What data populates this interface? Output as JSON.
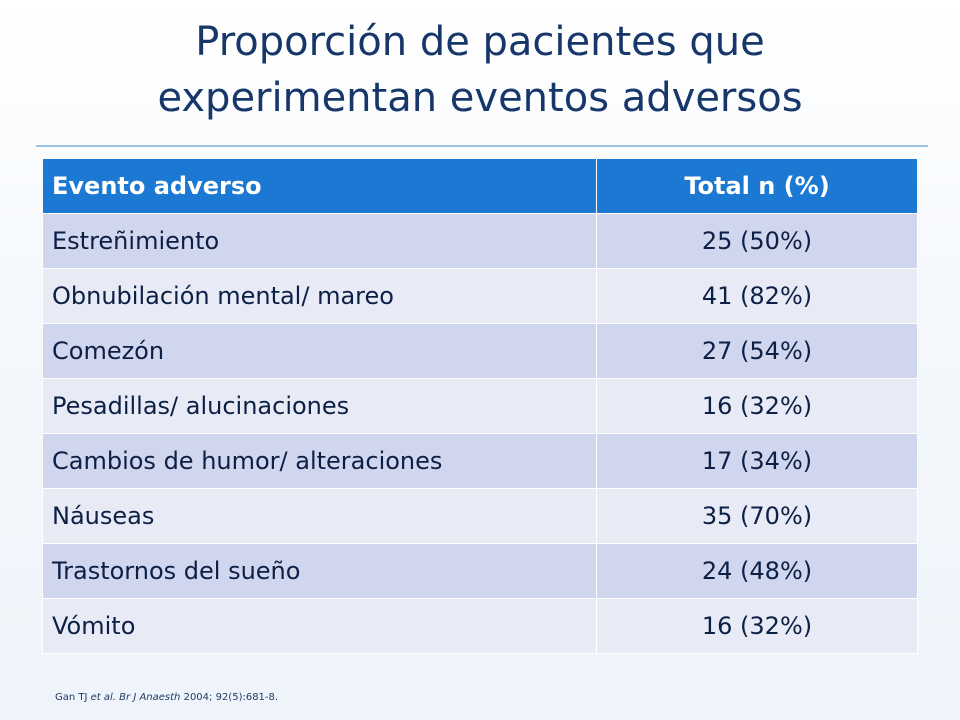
{
  "slide": {
    "title": "Proporción de pacientes que experimentan eventos adversos",
    "citation": {
      "authors_prefix": "Gan TJ",
      "et_al": "et al.",
      "journal": "Br J Anaesth",
      "details": "2004; 92(5):681-8."
    }
  },
  "table": {
    "headers": [
      "Evento adverso",
      "Total n (%)"
    ],
    "rows": [
      {
        "event": "Estreñimiento",
        "total": "25 (50%)"
      },
      {
        "event": "Obnubilación mental/ mareo",
        "total": "41 (82%)"
      },
      {
        "event": "Comezón",
        "total": "27 (54%)"
      },
      {
        "event": "Pesadillas/ alucinaciones",
        "total": "16 (32%)"
      },
      {
        "event": "Cambios de humor/ alteraciones",
        "total": "17 (34%)"
      },
      {
        "event": "Náuseas",
        "total": "35 (70%)"
      },
      {
        "event": "Trastornos del sueño",
        "total": "24 (48%)"
      },
      {
        "event": "Vómito",
        "total": "16 (32%)"
      }
    ]
  },
  "colors": {
    "header_bg": "#1b78d3",
    "row_odd": "#cfd6ee",
    "row_even": "#e8ebf6",
    "title": "#17376a"
  }
}
